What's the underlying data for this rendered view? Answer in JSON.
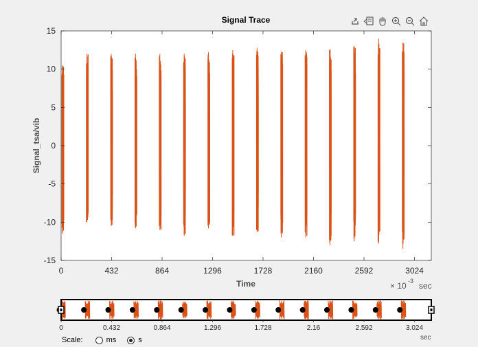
{
  "figure": {
    "title": "Signal Trace",
    "xlabel": "Time",
    "ylabel": "Signal_tsa/vib",
    "x_exponent_prefix": "× 10",
    "x_exponent": "-3",
    "x_unit": "sec",
    "series_color": "#d95319"
  },
  "toolbar": {
    "icons": [
      "export-icon",
      "data-tips-icon",
      "pan-hand-icon",
      "zoom-in-icon",
      "zoom-out-icon",
      "home-icon"
    ]
  },
  "chart_data": [
    {
      "type": "line",
      "title": "Signal Trace",
      "xlabel": "Time",
      "ylabel": "Signal_tsa/vib",
      "x_unit": "×10^-3 sec",
      "xlim": [
        0,
        3168
      ],
      "ylim": [
        -15,
        15
      ],
      "xticks": [
        "0",
        "432",
        "864",
        "1296",
        "1728",
        "2160",
        "2592",
        "3024"
      ],
      "yticks": [
        "15",
        "10",
        "5",
        "0",
        "-5",
        "-10",
        "-15"
      ],
      "grid": false,
      "burst_centers_ms": [
        15,
        224,
        432,
        640,
        848,
        1056,
        1264,
        1472,
        1680,
        1888,
        2096,
        2304,
        2512,
        2720,
        2928
      ],
      "burst_peak_max": [
        10.5,
        12.0,
        12.0,
        12.0,
        12.0,
        12.0,
        12.2,
        12.5,
        12.8,
        12.3,
        12.5,
        12.6,
        13.0,
        14.0,
        13.5
      ],
      "burst_peak_min": [
        -11.5,
        -10.0,
        -10.5,
        -10.8,
        -11.0,
        -11.8,
        -10.8,
        -11.8,
        -11.3,
        -12.0,
        -12.0,
        -13.0,
        -12.5,
        -12.8,
        -13.5
      ]
    },
    {
      "type": "line",
      "panner": true,
      "x_unit": "sec",
      "xlim": [
        0,
        3.168
      ],
      "xticks": [
        "0",
        "0.432",
        "0.864",
        "1.296",
        "1.728",
        "2.16",
        "2.592",
        "3.024"
      ]
    }
  ],
  "scale": {
    "label": "Scale:",
    "options": [
      "ms",
      "s"
    ],
    "selected": "s"
  }
}
